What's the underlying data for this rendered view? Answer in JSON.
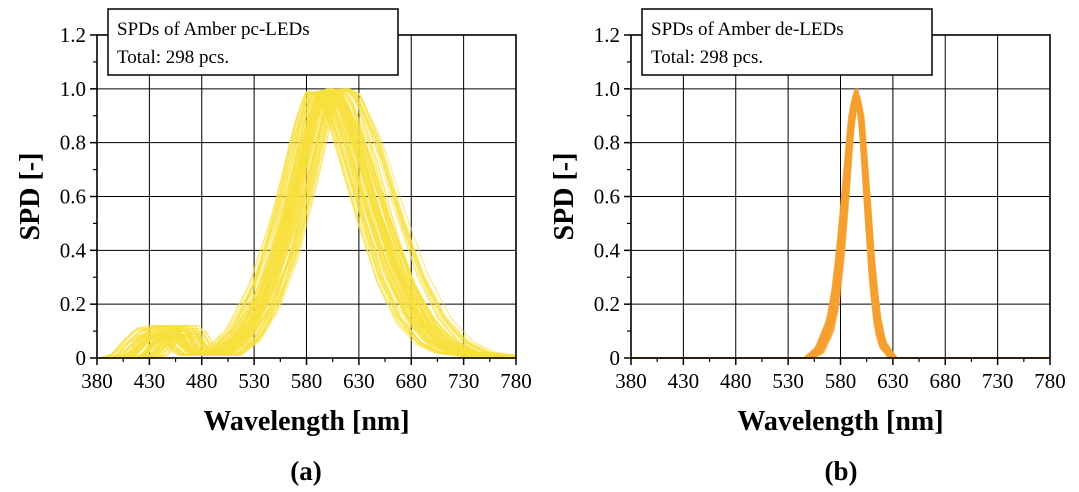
{
  "chart_data": [
    {
      "type": "line",
      "caption": "(a)",
      "legend_lines": [
        "SPDs of Amber pc-LEDs",
        "Total: 298 pcs."
      ],
      "xlabel": "Wavelength [nm]",
      "ylabel": "SPD [-]",
      "xlim": [
        380,
        780
      ],
      "ylim": [
        0,
        1.2
      ],
      "xticks": [
        380,
        430,
        480,
        530,
        580,
        630,
        680,
        730,
        780
      ],
      "xtick_labels": [
        "380",
        "430",
        "480",
        "530",
        "580",
        "630",
        "680",
        "730",
        "780"
      ],
      "yticks": [
        0,
        0.2,
        0.4,
        0.6,
        0.8,
        1.0,
        1.2
      ],
      "ytick_labels": [
        "0",
        "0.2",
        "0.4",
        "0.6",
        "0.8",
        "1.0",
        "1.2"
      ],
      "grid": true,
      "legend_position": "top-left",
      "color": "#f7e03c",
      "series_count": 298,
      "series": [
        {
          "x": [
            410,
            420,
            430,
            440,
            450,
            460,
            470,
            480,
            500,
            520,
            540,
            560,
            580,
            590,
            600,
            610,
            620,
            640,
            660,
            680,
            700,
            720,
            740,
            760,
            780
          ],
          "values": [
            0.0,
            0.01,
            0.06,
            0.09,
            0.1,
            0.1,
            0.04,
            0.01,
            0.02,
            0.09,
            0.24,
            0.48,
            0.82,
            0.97,
            0.99,
            0.93,
            0.83,
            0.58,
            0.34,
            0.17,
            0.07,
            0.03,
            0.01,
            0.0,
            0.0
          ]
        },
        {
          "x": [
            410,
            420,
            430,
            440,
            450,
            460,
            470,
            480,
            500,
            520,
            540,
            560,
            580,
            590,
            600,
            610,
            620,
            640,
            660,
            680,
            700,
            720,
            740,
            760,
            780
          ],
          "values": [
            0.0,
            0.01,
            0.05,
            0.08,
            0.09,
            0.09,
            0.04,
            0.01,
            0.01,
            0.07,
            0.2,
            0.42,
            0.74,
            0.9,
            0.99,
            1.0,
            0.95,
            0.73,
            0.46,
            0.25,
            0.11,
            0.04,
            0.01,
            0.0,
            0.0
          ]
        },
        {
          "x": [
            410,
            420,
            430,
            440,
            450,
            460,
            470,
            480,
            500,
            520,
            540,
            560,
            580,
            590,
            600,
            610,
            620,
            640,
            660,
            680,
            700,
            720,
            740,
            760,
            780
          ],
          "values": [
            0.0,
            0.02,
            0.07,
            0.11,
            0.12,
            0.12,
            0.05,
            0.01,
            0.03,
            0.11,
            0.28,
            0.55,
            0.88,
            0.99,
            0.98,
            0.9,
            0.77,
            0.51,
            0.28,
            0.13,
            0.05,
            0.02,
            0.01,
            0.0,
            0.0
          ]
        },
        {
          "x": [
            410,
            420,
            430,
            440,
            450,
            460,
            470,
            480,
            500,
            520,
            540,
            560,
            580,
            590,
            600,
            610,
            620,
            640,
            660,
            680,
            700,
            720,
            740,
            760,
            780
          ],
          "values": [
            0.0,
            0.01,
            0.04,
            0.07,
            0.08,
            0.08,
            0.03,
            0.01,
            0.01,
            0.06,
            0.18,
            0.38,
            0.68,
            0.85,
            0.97,
            1.0,
            0.98,
            0.8,
            0.54,
            0.31,
            0.15,
            0.06,
            0.02,
            0.01,
            0.0
          ]
        },
        {
          "x": [
            410,
            420,
            430,
            440,
            450,
            460,
            470,
            480,
            500,
            520,
            540,
            560,
            580,
            590,
            600,
            610,
            620,
            640,
            660,
            680,
            700,
            720,
            740,
            760,
            780
          ],
          "values": [
            0.0,
            0.01,
            0.06,
            0.1,
            0.11,
            0.11,
            0.04,
            0.01,
            0.02,
            0.1,
            0.26,
            0.51,
            0.85,
            0.98,
            0.99,
            0.92,
            0.8,
            0.55,
            0.31,
            0.15,
            0.06,
            0.02,
            0.01,
            0.0,
            0.0
          ]
        }
      ]
    },
    {
      "type": "line",
      "caption": "(b)",
      "legend_lines": [
        "SPDs of Amber de-LEDs",
        "Total: 298 pcs."
      ],
      "xlabel": "Wavelength [nm]",
      "ylabel": "SPD [-]",
      "xlim": [
        380,
        780
      ],
      "ylim": [
        0,
        1.2
      ],
      "xticks": [
        380,
        430,
        480,
        530,
        580,
        630,
        680,
        730,
        780
      ],
      "xtick_labels": [
        "380",
        "430",
        "480",
        "530",
        "580",
        "630",
        "680",
        "730",
        "780"
      ],
      "yticks": [
        0,
        0.2,
        0.4,
        0.6,
        0.8,
        1.0,
        1.2
      ],
      "ytick_labels": [
        "0",
        "0.2",
        "0.4",
        "0.6",
        "0.8",
        "1.0",
        "1.2"
      ],
      "grid": true,
      "legend_position": "top-left",
      "color": "#f5a02e",
      "series_count": 298,
      "series": [
        {
          "x": [
            550,
            560,
            570,
            575,
            580,
            585,
            590,
            595,
            600,
            605,
            610,
            615,
            620,
            630
          ],
          "values": [
            0.0,
            0.03,
            0.12,
            0.22,
            0.4,
            0.63,
            0.88,
            1.0,
            0.87,
            0.6,
            0.32,
            0.14,
            0.05,
            0.0
          ]
        },
        {
          "x": [
            550,
            560,
            570,
            575,
            580,
            585,
            590,
            595,
            600,
            605,
            610,
            615,
            620,
            630
          ],
          "values": [
            0.0,
            0.02,
            0.1,
            0.19,
            0.35,
            0.58,
            0.84,
            0.99,
            0.9,
            0.64,
            0.36,
            0.16,
            0.06,
            0.0
          ]
        },
        {
          "x": [
            550,
            560,
            570,
            575,
            580,
            585,
            590,
            595,
            600,
            605,
            610,
            615,
            620,
            630
          ],
          "values": [
            0.0,
            0.04,
            0.14,
            0.26,
            0.45,
            0.68,
            0.91,
            1.0,
            0.84,
            0.55,
            0.28,
            0.11,
            0.04,
            0.0
          ]
        },
        {
          "x": [
            550,
            560,
            570,
            575,
            580,
            585,
            590,
            595,
            600,
            605,
            610,
            615,
            620,
            630
          ],
          "values": [
            0.0,
            0.03,
            0.11,
            0.2,
            0.37,
            0.6,
            0.86,
            1.0,
            0.88,
            0.62,
            0.34,
            0.15,
            0.05,
            0.0
          ]
        }
      ]
    }
  ]
}
